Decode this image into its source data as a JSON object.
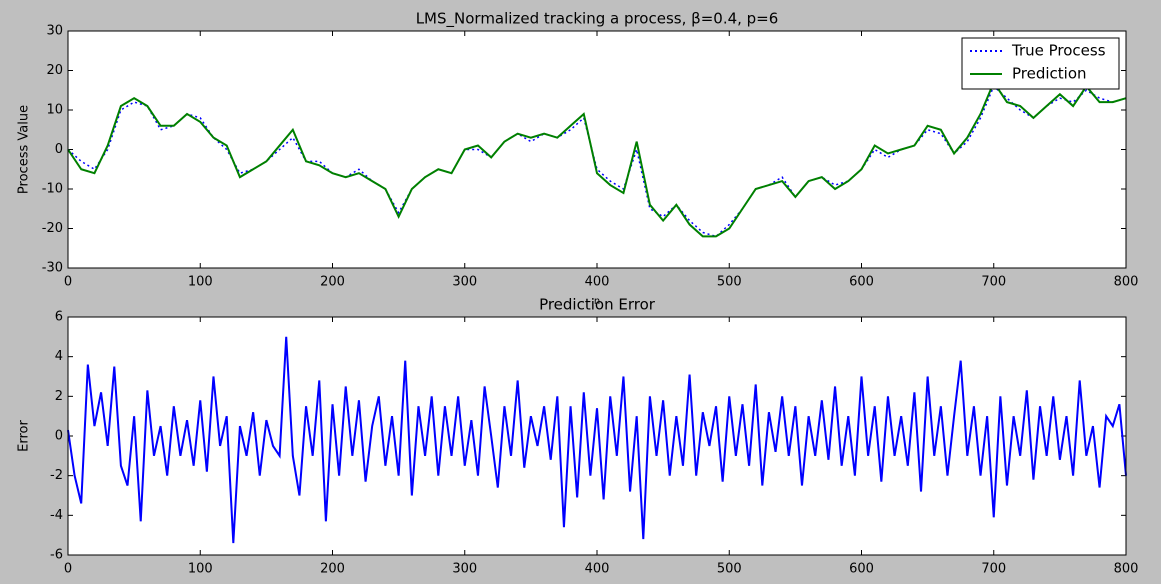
{
  "chart_data": [
    {
      "type": "line",
      "title": "LMS_Normalized tracking a process, β=0.4, p=6",
      "x_label": "n",
      "y_label": "Process Value",
      "legend": "upper right",
      "x": [
        0,
        10,
        20,
        30,
        40,
        50,
        60,
        70,
        80,
        90,
        100,
        110,
        120,
        130,
        140,
        150,
        160,
        170,
        180,
        190,
        200,
        210,
        220,
        230,
        240,
        250,
        260,
        270,
        280,
        290,
        300,
        310,
        320,
        330,
        340,
        350,
        360,
        370,
        380,
        390,
        400,
        410,
        420,
        430,
        440,
        450,
        460,
        470,
        480,
        490,
        500,
        510,
        520,
        530,
        540,
        550,
        560,
        570,
        580,
        590,
        600,
        610,
        620,
        630,
        640,
        650,
        660,
        670,
        680,
        690,
        700,
        710,
        720,
        730,
        740,
        750,
        760,
        770,
        780,
        790,
        800
      ],
      "series": [
        {
          "name": "True Process",
          "color": "#0000ff",
          "linestyle": "dotted",
          "values": [
            0,
            -3,
            -5,
            0,
            10,
            12,
            11,
            5,
            6,
            9,
            8,
            3,
            0,
            -6,
            -5,
            -3,
            0,
            3,
            -3,
            -3,
            -6,
            -7,
            -5,
            -8,
            -10,
            -16,
            -10,
            -7,
            -5,
            -6,
            0,
            0,
            -2,
            2,
            4,
            2,
            4,
            3,
            5,
            8,
            -5,
            -8,
            -10,
            0,
            -15,
            -17,
            -14,
            -18,
            -21,
            -22,
            -19,
            -15,
            -10,
            -9,
            -7,
            -12,
            -8,
            -7,
            -9,
            -8,
            -5,
            0,
            -2,
            0,
            1,
            5,
            4,
            -1,
            2,
            8,
            16,
            13,
            10,
            8,
            11,
            13,
            12,
            15,
            13,
            12,
            13
          ]
        },
        {
          "name": "Prediction",
          "color": "#008000",
          "linestyle": "solid",
          "values": [
            0,
            -5,
            -6,
            1,
            11,
            13,
            11,
            6,
            6,
            9,
            7,
            3,
            1,
            -7,
            -5,
            -3,
            1,
            5,
            -3,
            -4,
            -6,
            -7,
            -6,
            -8,
            -10,
            -17,
            -10,
            -7,
            -5,
            -6,
            0,
            1,
            -2,
            2,
            4,
            3,
            4,
            3,
            6,
            9,
            -6,
            -9,
            -11,
            2,
            -14,
            -18,
            -14,
            -19,
            -22,
            -22,
            -20,
            -15,
            -10,
            -9,
            -8,
            -12,
            -8,
            -7,
            -10,
            -8,
            -5,
            1,
            -1,
            0,
            1,
            6,
            5,
            -1,
            3,
            9,
            17,
            12,
            11,
            8,
            11,
            14,
            11,
            16,
            12,
            12,
            13
          ]
        }
      ],
      "xlim": [
        0,
        800
      ],
      "xticks": [
        0,
        100,
        200,
        300,
        400,
        500,
        600,
        700,
        800
      ],
      "ylim": [
        -30,
        30
      ],
      "yticks": [
        -30,
        -20,
        -10,
        0,
        10,
        20,
        30
      ]
    },
    {
      "type": "line",
      "title": "Prediction Error",
      "y_label": "Error",
      "x": [
        0,
        5,
        10,
        15,
        20,
        25,
        30,
        35,
        40,
        45,
        50,
        55,
        60,
        65,
        70,
        75,
        80,
        85,
        90,
        95,
        100,
        105,
        110,
        115,
        120,
        125,
        130,
        135,
        140,
        145,
        150,
        155,
        160,
        165,
        170,
        175,
        180,
        185,
        190,
        195,
        200,
        205,
        210,
        215,
        220,
        225,
        230,
        235,
        240,
        245,
        250,
        255,
        260,
        265,
        270,
        275,
        280,
        285,
        290,
        295,
        300,
        305,
        310,
        315,
        320,
        325,
        330,
        335,
        340,
        345,
        350,
        355,
        360,
        365,
        370,
        375,
        380,
        385,
        390,
        395,
        400,
        405,
        410,
        415,
        420,
        425,
        430,
        435,
        440,
        445,
        450,
        455,
        460,
        465,
        470,
        475,
        480,
        485,
        490,
        495,
        500,
        505,
        510,
        515,
        520,
        525,
        530,
        535,
        540,
        545,
        550,
        555,
        560,
        565,
        570,
        575,
        580,
        585,
        590,
        595,
        600,
        605,
        610,
        615,
        620,
        625,
        630,
        635,
        640,
        645,
        650,
        655,
        660,
        665,
        670,
        675,
        680,
        685,
        690,
        695,
        700,
        705,
        710,
        715,
        720,
        725,
        730,
        735,
        740,
        745,
        750,
        755,
        760,
        765,
        770,
        775,
        780,
        785,
        790,
        795,
        800
      ],
      "series": [
        {
          "name": "Error",
          "color": "#0000ff",
          "linestyle": "solid",
          "values": [
            0.3,
            -2,
            -3.4,
            3.6,
            0.5,
            2.2,
            -0.5,
            3.5,
            -1.5,
            -2.5,
            1,
            -4.3,
            2.3,
            -1,
            0.5,
            -2,
            1.5,
            -1,
            0.8,
            -1.5,
            1.8,
            -1.8,
            3,
            -0.5,
            1,
            -5.4,
            0.5,
            -1,
            1.2,
            -2,
            0.8,
            -0.5,
            -1,
            5,
            -1,
            -3,
            1.5,
            -1,
            2.8,
            -4.3,
            1.6,
            -2,
            2.5,
            -1,
            1.8,
            -2.3,
            0.5,
            2,
            -1.5,
            1,
            -2,
            3.8,
            -3,
            1.5,
            -1,
            2,
            -2,
            1.5,
            -1,
            2,
            -1.5,
            0.8,
            -2,
            2.5,
            0,
            -2.6,
            1.5,
            -1,
            2.8,
            -1.6,
            1,
            -0.5,
            1.5,
            -1.2,
            2,
            -4.6,
            1.5,
            -3.1,
            2.2,
            -2,
            1.4,
            -3.2,
            2,
            -1,
            3,
            -2.8,
            1,
            -5.2,
            2,
            -1,
            1.8,
            -2,
            1,
            -1.5,
            3.1,
            -2,
            1.2,
            -0.5,
            1.5,
            -2.3,
            2,
            -1,
            1.6,
            -1.5,
            2.6,
            -2.5,
            1.2,
            -0.8,
            2,
            -1,
            1.5,
            -2.5,
            1,
            -1,
            1.8,
            -1.2,
            2.5,
            -1.5,
            1,
            -2,
            3,
            -1,
            1.5,
            -2.3,
            2,
            -1,
            1,
            -1.5,
            2.2,
            -2.8,
            3,
            -1,
            1.5,
            -2,
            1,
            3.8,
            -1,
            1.5,
            -2,
            1,
            -4.1,
            2,
            -2.5,
            1,
            -1,
            2.3,
            -2.2,
            1.5,
            -1,
            2,
            -1.2,
            1,
            -2,
            2.8,
            -1,
            0.5,
            -2.6,
            1,
            0.5,
            1.6,
            -2
          ]
        }
      ],
      "xlim": [
        0,
        800
      ],
      "xticks": [
        0,
        100,
        200,
        300,
        400,
        500,
        600,
        700,
        800
      ],
      "ylim": [
        -6,
        6
      ],
      "yticks": [
        -6,
        -4,
        -2,
        0,
        2,
        4,
        6
      ]
    }
  ]
}
